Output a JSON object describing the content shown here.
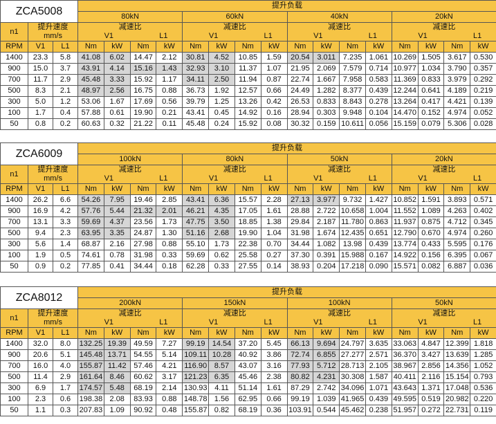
{
  "tables": [
    {
      "model": "ZCA5008",
      "load_header": "提升负载",
      "n1": "n1",
      "speed": "提升速度",
      "speed_unit": "mm/s",
      "ratio": "减速比",
      "ratio_v1": "V1",
      "ratio_l1": "L1",
      "rpm": "RPM",
      "v1": "V1",
      "l1": "L1",
      "nm": "Nm",
      "kw": "kW",
      "loads": [
        "80kN",
        "60kN",
        "40kN",
        "20kN"
      ],
      "rows": [
        [
          "1400",
          "23.3",
          "5.8",
          "41.08",
          "6.02",
          "14.47",
          "2.12",
          "30.81",
          "4.52",
          "10.85",
          "1.59",
          "20.54",
          "3.011",
          "7.235",
          "1.061",
          "10.269",
          "1.505",
          "3.617",
          "0.530"
        ],
        [
          "900",
          "15.0",
          "3.7",
          "43.91",
          "4.14",
          "15.16",
          "1.43",
          "32.93",
          "3.10",
          "11.37",
          "1.07",
          "21.95",
          "2.069",
          "7.579",
          "0.714",
          "10.977",
          "1.034",
          "3.790",
          "0.357"
        ],
        [
          "700",
          "11.7",
          "2.9",
          "45.48",
          "3.33",
          "15.92",
          "1.17",
          "34.11",
          "2.50",
          "11.94",
          "0.87",
          "22.74",
          "1.667",
          "7.958",
          "0.583",
          "11.369",
          "0.833",
          "3.979",
          "0.292"
        ],
        [
          "500",
          "8.3",
          "2.1",
          "48.97",
          "2.56",
          "16.75",
          "0.88",
          "36.73",
          "1.92",
          "12.57",
          "0.66",
          "24.49",
          "1.282",
          "8.377",
          "0.439",
          "12.244",
          "0.641",
          "4.189",
          "0.219"
        ],
        [
          "300",
          "5.0",
          "1.2",
          "53.06",
          "1.67",
          "17.69",
          "0.56",
          "39.79",
          "1.25",
          "13.26",
          "0.42",
          "26.53",
          "0.833",
          "8.843",
          "0.278",
          "13.264",
          "0.417",
          "4.421",
          "0.139"
        ],
        [
          "100",
          "1.7",
          "0.4",
          "57.88",
          "0.61",
          "19.90",
          "0.21",
          "43.41",
          "0.45",
          "14.92",
          "0.16",
          "28.94",
          "0.303",
          "9.948",
          "0.104",
          "14.470",
          "0.152",
          "4.974",
          "0.052"
        ],
        [
          "50",
          "0.8",
          "0.2",
          "60.63",
          "0.32",
          "21.22",
          "0.11",
          "45.48",
          "0.24",
          "15.92",
          "0.08",
          "30.32",
          "0.159",
          "10.611",
          "0.056",
          "15.159",
          "0.079",
          "5.306",
          "0.028"
        ]
      ]
    },
    {
      "model": "ZCA6009",
      "load_header": "提升负载",
      "n1": "n1",
      "speed": "提升速度",
      "speed_unit": "mm/s",
      "ratio": "减速比",
      "ratio_v1": "V1",
      "ratio_l1": "L1",
      "rpm": "RPM",
      "v1": "V1",
      "l1": "L1",
      "nm": "Nm",
      "kw": "kW",
      "loads": [
        "100kN",
        "80kN",
        "50kN",
        "20kN"
      ],
      "rows": [
        [
          "1400",
          "26.2",
          "6.6",
          "54.26",
          "7.95",
          "19.46",
          "2.85",
          "43.41",
          "6.36",
          "15.57",
          "2.28",
          "27.13",
          "3.977",
          "9.732",
          "1.427",
          "10.852",
          "1.591",
          "3.893",
          "0.571"
        ],
        [
          "900",
          "16.9",
          "4.2",
          "57.76",
          "5.44",
          "21.32",
          "2.01",
          "46.21",
          "4.35",
          "17.05",
          "1.61",
          "28.88",
          "2.722",
          "10.658",
          "1.004",
          "11.552",
          "1.089",
          "4.263",
          "0.402"
        ],
        [
          "700",
          "13.1",
          "3.3",
          "59.69",
          "4.37",
          "23.56",
          "1.73",
          "47.75",
          "3.50",
          "18.85",
          "1.38",
          "29.84",
          "2.187",
          "11.780",
          "0.863",
          "11.937",
          "0.875",
          "4.712",
          "0.345"
        ],
        [
          "500",
          "9.4",
          "2.3",
          "63.95",
          "3.35",
          "24.87",
          "1.30",
          "51.16",
          "2.68",
          "19.90",
          "1.04",
          "31.98",
          "1.674",
          "12.435",
          "0.651",
          "12.790",
          "0.670",
          "4.974",
          "0.260"
        ],
        [
          "300",
          "5.6",
          "1.4",
          "68.87",
          "2.16",
          "27.98",
          "0.88",
          "55.10",
          "1.73",
          "22.38",
          "0.70",
          "34.44",
          "1.082",
          "13.98",
          "0.439",
          "13.774",
          "0.433",
          "5.595",
          "0.176"
        ],
        [
          "100",
          "1.9",
          "0.5",
          "74.61",
          "0.78",
          "31.98",
          "0.33",
          "59.69",
          "0.62",
          "25.58",
          "0.27",
          "37.30",
          "0.391",
          "15.988",
          "0.167",
          "14.922",
          "0.156",
          "6.395",
          "0.067"
        ],
        [
          "50",
          "0.9",
          "0.2",
          "77.85",
          "0.41",
          "34.44",
          "0.18",
          "62.28",
          "0.33",
          "27.55",
          "0.14",
          "38.93",
          "0.204",
          "17.218",
          "0.090",
          "15.571",
          "0.082",
          "6.887",
          "0.036"
        ]
      ]
    },
    {
      "model": "ZCA8012",
      "load_header": "提升负载",
      "n1": "n1",
      "speed": "提升速度",
      "speed_unit": "mm/s",
      "ratio": "减速比",
      "ratio_v1": "V1",
      "ratio_l1": "L1",
      "rpm": "RPM",
      "v1": "V1",
      "l1": "L1",
      "nm": "Nm",
      "kw": "kW",
      "loads": [
        "200kN",
        "150kN",
        "100kN",
        "50kN"
      ],
      "rows": [
        [
          "1400",
          "32.0",
          "8.0",
          "132.25",
          "19.39",
          "49.59",
          "7.27",
          "99.19",
          "14.54",
          "37.20",
          "5.45",
          "66.13",
          "9.694",
          "24.797",
          "3.635",
          "33.063",
          "4.847",
          "12.399",
          "1.818"
        ],
        [
          "900",
          "20.6",
          "5.1",
          "145.48",
          "13.71",
          "54.55",
          "5.14",
          "109.11",
          "10.28",
          "40.92",
          "3.86",
          "72.74",
          "6.855",
          "27.277",
          "2.571",
          "36.370",
          "3.427",
          "13.639",
          "1.285"
        ],
        [
          "700",
          "16.0",
          "4.0",
          "155.87",
          "11.42",
          "57.46",
          "4.21",
          "116.90",
          "8.57",
          "43.07",
          "3.16",
          "77.93",
          "5.712",
          "28.713",
          "2.105",
          "38.967",
          "2.856",
          "14.356",
          "1.052"
        ],
        [
          "500",
          "11.4",
          "2.9",
          "161.64",
          "8.46",
          "60.62",
          "3.17",
          "121.23",
          "6.35",
          "45.46",
          "2.38",
          "80.82",
          "4.231",
          "30.308",
          "1.587",
          "40.411",
          "2.116",
          "15.154",
          "0.793"
        ],
        [
          "300",
          "6.9",
          "1.7",
          "174.57",
          "5.48",
          "68.19",
          "2.14",
          "130.93",
          "4.11",
          "51.14",
          "1.61",
          "87.29",
          "2.742",
          "34.096",
          "1.071",
          "43.643",
          "1.371",
          "17.048",
          "0.536"
        ],
        [
          "100",
          "2.3",
          "0.6",
          "198.38",
          "2.08",
          "83.93",
          "0.88",
          "148.78",
          "1.56",
          "62.95",
          "0.66",
          "99.19",
          "1.039",
          "41.965",
          "0.439",
          "49.595",
          "0.519",
          "20.982",
          "0.220"
        ],
        [
          "50",
          "1.1",
          "0.3",
          "207.83",
          "1.09",
          "90.92",
          "0.48",
          "155.87",
          "0.82",
          "68.19",
          "0.36",
          "103.91",
          "0.544",
          "45.462",
          "0.238",
          "51.957",
          "0.272",
          "22.731",
          "0.119"
        ]
      ]
    }
  ]
}
